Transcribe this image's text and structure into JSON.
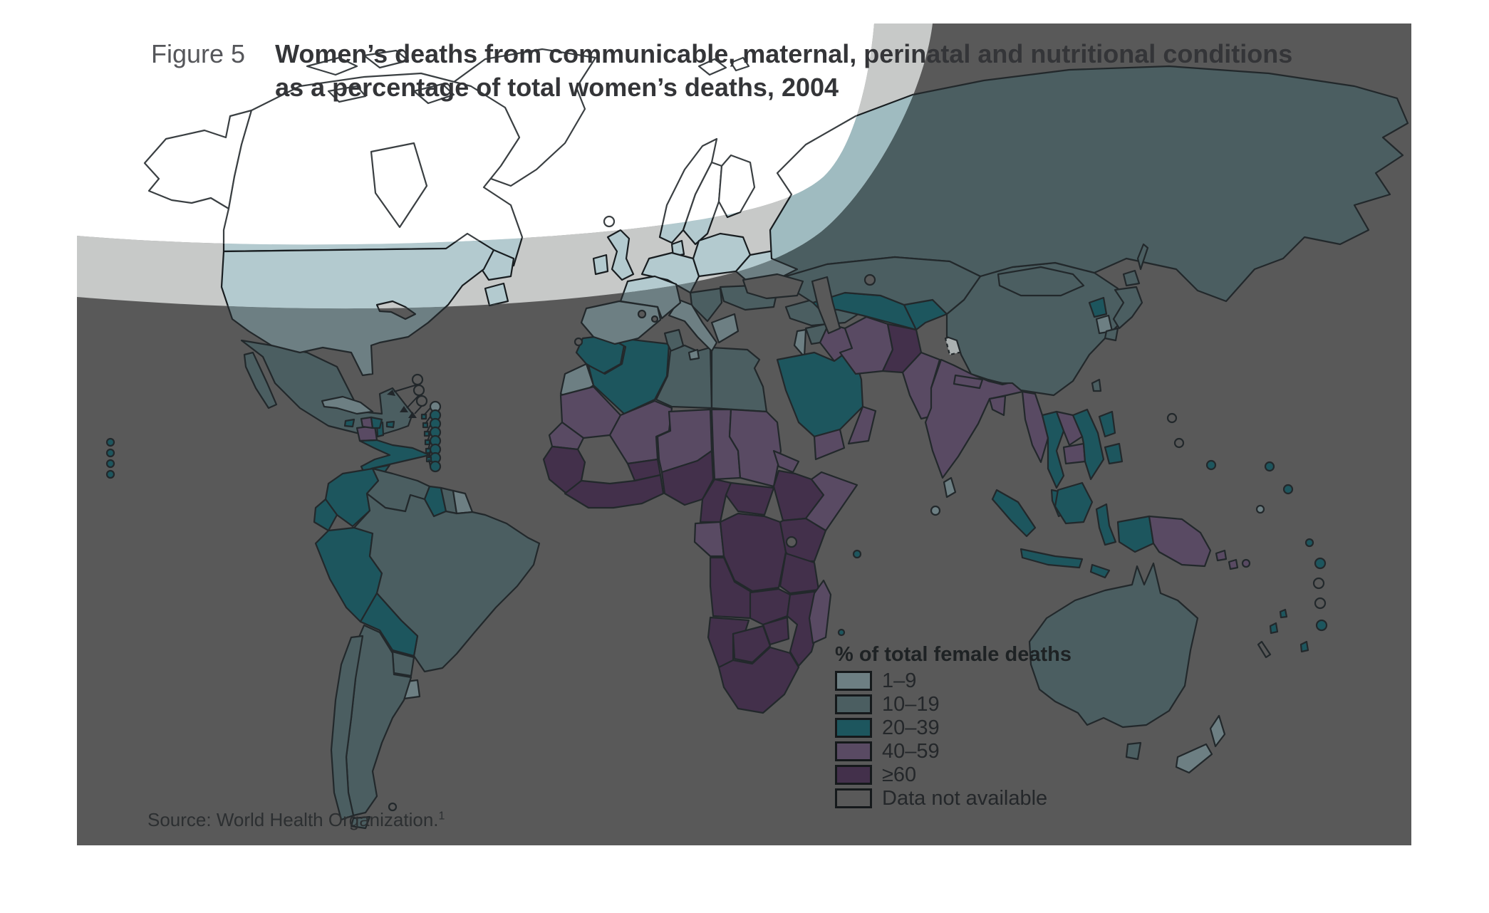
{
  "figure": {
    "label": "Figure 5",
    "title_line1": "Women’s deaths from communicable, maternal, perinatal and nutritional conditions",
    "title_line2": "as a percentage of total women’s deaths, 2004",
    "source_text": "Source: World Health Organization.",
    "source_footnote": "1"
  },
  "legend": {
    "title": "% of total female deaths",
    "items": [
      {
        "label": "1–9",
        "category": "cat1"
      },
      {
        "label": "10–19",
        "category": "cat2"
      },
      {
        "label": "20–39",
        "category": "cat3"
      },
      {
        "label": "40–59",
        "category": "cat4"
      },
      {
        "label": "≥60",
        "category": "cat5"
      },
      {
        "label": "Data not available",
        "category": "na"
      }
    ]
  },
  "map": {
    "type": "choropleth-world-map",
    "year": "2004",
    "background_dark": "#595959",
    "band_color": "#c7c9c8",
    "white_zone_color": "#ffffff",
    "stroke_dark": "#22282b",
    "stroke_band": "#181d20",
    "stroke_white": "#3a3f42",
    "palette_dark": {
      "cat1": "#6d7f83",
      "cat2": "#4b5e61",
      "cat3": "#1d565e",
      "cat4": "#594a63",
      "cat5": "#43304b",
      "na": "#abb1b1",
      "sea": "#595959"
    },
    "palette_band": {
      "cat1": "#b3cacf",
      "cat2": "#9fbbc0",
      "cat3": "#4e868d",
      "cat4": "#90809d",
      "cat5": "#7e6b8a",
      "na": "#d9dbda",
      "sea": "#c7c9c8"
    },
    "palette_white": {
      "cat1": "#ffffff",
      "cat2": "#ffffff",
      "cat3": "#ffffff",
      "cat4": "#ffffff",
      "cat5": "#ffffff",
      "na": "#ffffff",
      "sea": "#ffffff"
    },
    "regions": {
      "canada": "cat1",
      "alaska": "cat1",
      "greenland": "cat1",
      "newfoundland": "cat1",
      "us": "cat1",
      "hudson": "sea",
      "greatlakes": "sea",
      "iceland": "sea",
      "medisles": "sea",
      "mexico": "cat2",
      "guatemala": "cat4",
      "belize": "cat3",
      "camerica": "cat3",
      "cuba": "cat1",
      "jamaica": "cat3",
      "haiti": "cat4",
      "domrep": "cat3",
      "pr": "cat3",
      "caribsq": "cat3",
      "caribdot1": "cat1",
      "caribdot3": "cat3",
      "caribring": "sea",
      "colombia": "cat3",
      "venezuela": "cat2",
      "guyana": "cat3",
      "suriname": "cat2",
      "guiana": "cat1",
      "ecuador": "cat3",
      "peru": "cat3",
      "brazil": "cat2",
      "bolivia": "cat3",
      "paraguay": "cat2",
      "uruguay": "cat1",
      "argentina": "cat2",
      "chile": "cat2",
      "falkland": "sea",
      "uk": "cat1",
      "ireland": "cat1",
      "norway": "cat1",
      "sweden": "cat1",
      "finland": "cat1",
      "denmark": "cat1",
      "germany": "cat1",
      "poland": "cat1",
      "ukraine": "cat1",
      "romania": "cat2",
      "balkans": "cat2",
      "greece": "cat1",
      "italy": "cat1",
      "france": "cat1",
      "iberia": "cat1",
      "svalbard": "na",
      "russia": "cat2",
      "kazakh": "cat2",
      "blacksea": "sea",
      "caspian": "sea",
      "aral": "sea",
      "morocco": "cat3",
      "wsahara": "cat1",
      "algeria": "cat3",
      "tunisia": "cat2",
      "libya": "cat2",
      "egypt": "cat2",
      "mauritania": "cat4",
      "senegal": "cat4",
      "guinea": "cat5",
      "mali": "cat4",
      "burkina": "cat5",
      "wafrica": "cat5",
      "niger": "cat4",
      "nigeria": "cat5",
      "chad": "cat4",
      "sudan": "cat4",
      "eritrea": "cat4",
      "ethiopia": "cat5",
      "somalia": "cat4",
      "cameroon": "cat5",
      "car": "cat5",
      "gabon": "cat4",
      "drc": "cat5",
      "kenya": "cat5",
      "tanzania": "cat5",
      "lakevictoria": "sea",
      "angola": "cat5",
      "zambia": "cat5",
      "mozambique": "cat5",
      "zimbabwe": "cat5",
      "namibia": "cat5",
      "botswana": "cat5",
      "southafrica": "cat5",
      "madagascar": "cat4",
      "turkey": "cat2",
      "caucasus": "cat3",
      "syria": "cat2",
      "levant": "cat1",
      "iraq": "cat4",
      "saudi": "cat3",
      "yemen": "cat4",
      "oman": "cat4",
      "iran": "cat4",
      "afghanistan": "cat5",
      "pakistan": "cat4",
      "centralasia": "cat3",
      "kyrgyz": "cat3",
      "india": "cat4",
      "nepal": "cat4",
      "bangladesh": "cat4",
      "kashmir": "na",
      "srilanka": "cat1",
      "china": "cat2",
      "mongolia": "cat2",
      "nkorea": "cat3",
      "skorea": "cat1",
      "japan": "cat2",
      "taiwan": "cat2",
      "myanmar": "cat4",
      "thailand": "cat3",
      "laos": "cat4",
      "cambodia": "cat4",
      "vietnam": "cat3",
      "malaysia": "cat3",
      "sumatra": "cat3",
      "java": "cat3",
      "borneo": "cat3",
      "sulawesi": "cat3",
      "philippines": "cat3",
      "timor": "cat3",
      "nguinea": "cat3",
      "png": "cat4",
      "solomon": "cat4",
      "australia": "cat2",
      "tasmania": "cat2",
      "nz": "cat1",
      "newcal": "sea",
      "pac1": "cat1",
      "pac3": "cat3",
      "pac4": "cat4",
      "pacna": "sea"
    }
  }
}
